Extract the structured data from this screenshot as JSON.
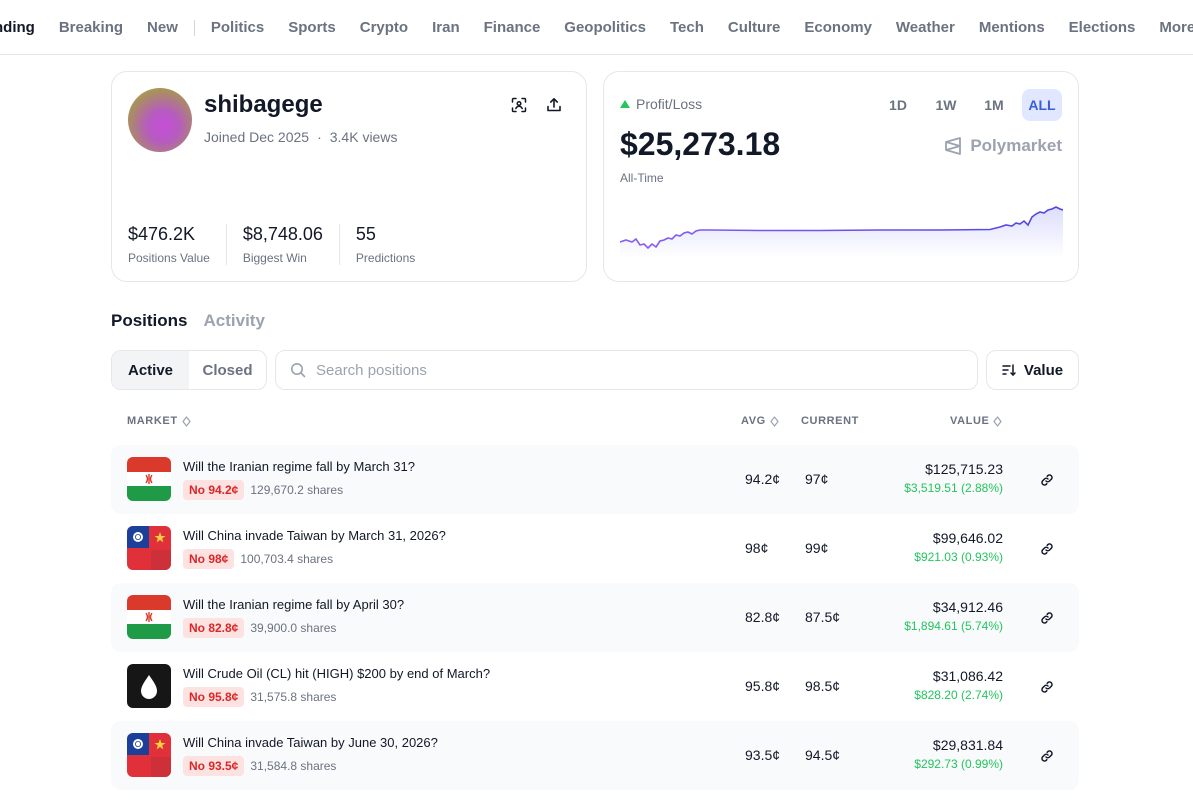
{
  "nav": {
    "items": [
      "nding",
      "Breaking",
      "New",
      "Politics",
      "Sports",
      "Crypto",
      "Iran",
      "Finance",
      "Geopolitics",
      "Tech",
      "Culture",
      "Economy",
      "Weather",
      "Mentions",
      "Elections"
    ],
    "more": "More"
  },
  "profile": {
    "username": "shibagege",
    "joined": "Joined Dec 2025",
    "separator": "·",
    "views": "3.4K views",
    "stats": [
      {
        "value": "$476.2K",
        "label": "Positions Value"
      },
      {
        "value": "$8,748.06",
        "label": "Biggest Win"
      },
      {
        "value": "55",
        "label": "Predictions"
      }
    ]
  },
  "pnl": {
    "label": "Profit/Loss",
    "value": "$25,273.18",
    "period": "All-Time",
    "ranges": [
      "1D",
      "1W",
      "1M",
      "ALL"
    ],
    "active_range": "ALL",
    "brand": "Polymarket",
    "accent": "#5b5bd6"
  },
  "tabs": [
    "Positions",
    "Activity"
  ],
  "filter": {
    "options": [
      "Active",
      "Closed"
    ],
    "search_placeholder": "Search positions",
    "sort_label": "Value"
  },
  "table": {
    "headers": {
      "market": "MARKET",
      "avg": "AVG",
      "current": "CURRENT",
      "value": "VALUE"
    },
    "rows": [
      {
        "title": "Will the Iranian regime fall by March 31?",
        "badge": "No 94.2¢",
        "shares": "129,670.2 shares",
        "avg": "94.2¢",
        "current": "97¢",
        "value": "$125,715.23",
        "gain": "$3,519.51 (2.88%)",
        "icon": "iran-flag"
      },
      {
        "title": "Will China invade Taiwan by March 31, 2026?",
        "badge": "No 98¢",
        "shares": "100,703.4 shares",
        "avg": "98¢",
        "current": "99¢",
        "value": "$99,646.02",
        "gain": "$921.03 (0.93%)",
        "icon": "taiwan-china-flag"
      },
      {
        "title": "Will the Iranian regime fall by April 30?",
        "badge": "No 82.8¢",
        "shares": "39,900.0 shares",
        "avg": "82.8¢",
        "current": "87.5¢",
        "value": "$34,912.46",
        "gain": "$1,894.61 (5.74%)",
        "icon": "iran-flag"
      },
      {
        "title": "Will Crude Oil (CL) hit (HIGH) $200 by end of March?",
        "badge": "No 95.8¢",
        "shares": "31,575.8 shares",
        "avg": "95.8¢",
        "current": "98.5¢",
        "value": "$31,086.42",
        "gain": "$828.20 (2.74%)",
        "icon": "oil-drop"
      },
      {
        "title": "Will China invade Taiwan by June 30, 2026?",
        "badge": "No 93.5¢",
        "shares": "31,584.8 shares",
        "avg": "93.5¢",
        "current": "94.5¢",
        "value": "$29,831.84",
        "gain": "$292.73 (0.99%)",
        "icon": "taiwan-china-flag"
      }
    ]
  }
}
